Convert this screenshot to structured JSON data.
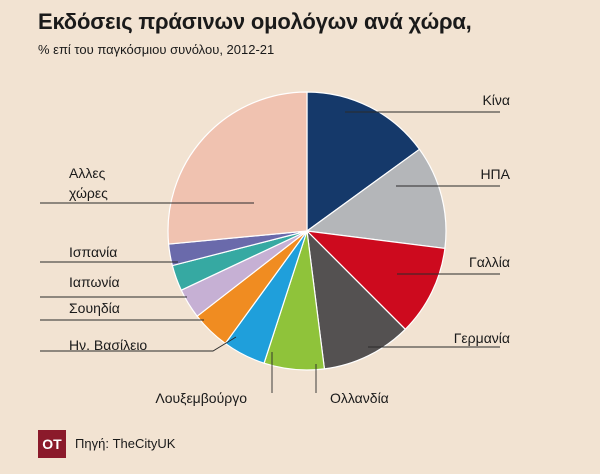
{
  "title": "Εκδόσεις πράσινων ομολόγων ανά χώρα,",
  "subtitle": "% επί του παγκόσμιου συνόλου, 2012-21",
  "footer": {
    "logo_text": "OT",
    "source": "Πηγή: TheCityUK"
  },
  "chart_data": {
    "type": "pie",
    "unit": "%",
    "start": "top",
    "direction": "clockwise",
    "slices": [
      {
        "label": "Κίνα",
        "value": 15.0,
        "color": "#15396a"
      },
      {
        "label": "ΗΠΑ",
        "value": 12.0,
        "color": "#b4b6b9"
      },
      {
        "label": "Γαλλία",
        "value": 10.5,
        "color": "#cd0a1e"
      },
      {
        "label": "Γερμανία",
        "value": 10.5,
        "color": "#545151"
      },
      {
        "label": "Ολλανδία",
        "value": 7.0,
        "color": "#8fc33a"
      },
      {
        "label": "Λουξεμβούργο",
        "value": 5.0,
        "color": "#1f9fdb"
      },
      {
        "label": "Ην. Βασίλειο",
        "value": 4.5,
        "color": "#f08c21"
      },
      {
        "label": "Σουηδία",
        "value": 3.5,
        "color": "#c6b0d4"
      },
      {
        "label": "Ιαπωνία",
        "value": 3.0,
        "color": "#36a9a2"
      },
      {
        "label": "Ισπανία",
        "value": 2.5,
        "color": "#6a6aab"
      },
      {
        "label": "Αλλες\nχώρες",
        "value": 26.5,
        "color": "#f0c2b0"
      }
    ]
  }
}
